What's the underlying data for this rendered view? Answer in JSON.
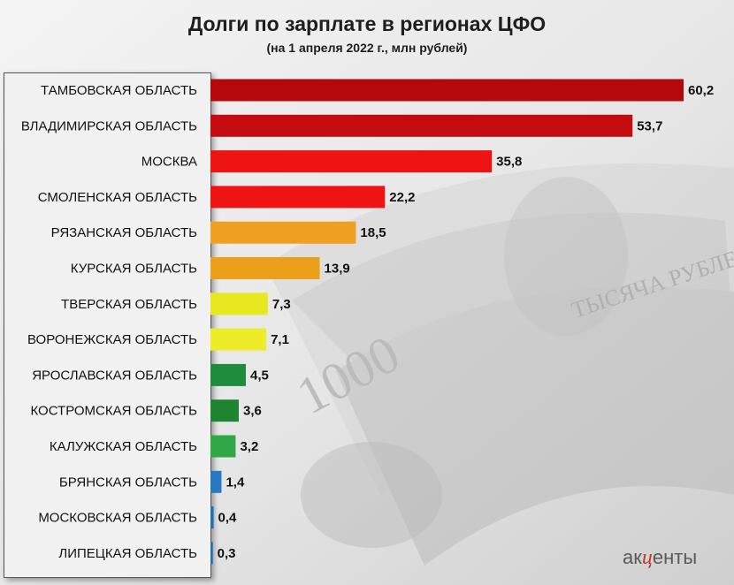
{
  "title": "Долги по зарплате в регионах ЦФО",
  "subtitle": "(на 1 апреля 2022 г., млн рублей)",
  "chart_data": {
    "type": "bar",
    "orientation": "horizontal",
    "title": "Долги по зарплате в регионах ЦФО",
    "subtitle": "(на 1 апреля 2022 г., млн рублей)",
    "categories": [
      "ТАМБОВСКАЯ ОБЛАСТЬ",
      "ВЛАДИМИРСКАЯ ОБЛАСТЬ",
      "МОСКВА",
      "СМОЛЕНСКАЯ ОБЛАСТЬ",
      "РЯЗАНСКАЯ ОБЛАСТЬ",
      "КУРСКАЯ ОБЛАСТЬ",
      "ТВЕРСКАЯ ОБЛАСТЬ",
      "ВОРОНЕЖСКАЯ ОБЛАСТЬ",
      "ЯРОСЛАВСКАЯ ОБЛАСТЬ",
      "КОСТРОМСКАЯ ОБЛАСТЬ",
      "КАЛУЖСКАЯ ОБЛАСТЬ",
      "БРЯНСКАЯ ОБЛАСТЬ",
      "МОСКОВСКАЯ ОБЛАСТЬ",
      "ЛИПЕЦКАЯ ОБЛАСТЬ"
    ],
    "values": [
      60.2,
      53.7,
      35.8,
      22.2,
      18.5,
      13.9,
      7.3,
      7.1,
      4.5,
      3.6,
      3.2,
      1.4,
      0.4,
      0.3
    ],
    "value_labels": [
      "60,2",
      "53,7",
      "35,8",
      "22,2",
      "18,5",
      "13,9",
      "7,3",
      "7,1",
      "4,5",
      "3,6",
      "3,2",
      "1,4",
      "0,4",
      "0,3"
    ],
    "colors": [
      "#b3080c",
      "#c40c10",
      "#ee1414",
      "#ee1414",
      "#f0a020",
      "#eca019",
      "#e8e820",
      "#ecec28",
      "#1e8c3c",
      "#1e8430",
      "#30a848",
      "#2878c0",
      "#2070b4",
      "#2070b4"
    ],
    "xlim": [
      0,
      60.2
    ],
    "xlabel": "",
    "ylabel": "",
    "grid": false,
    "legend": "none"
  },
  "logo": {
    "left": "ак",
    "mid": "ц",
    "right": "енты"
  }
}
